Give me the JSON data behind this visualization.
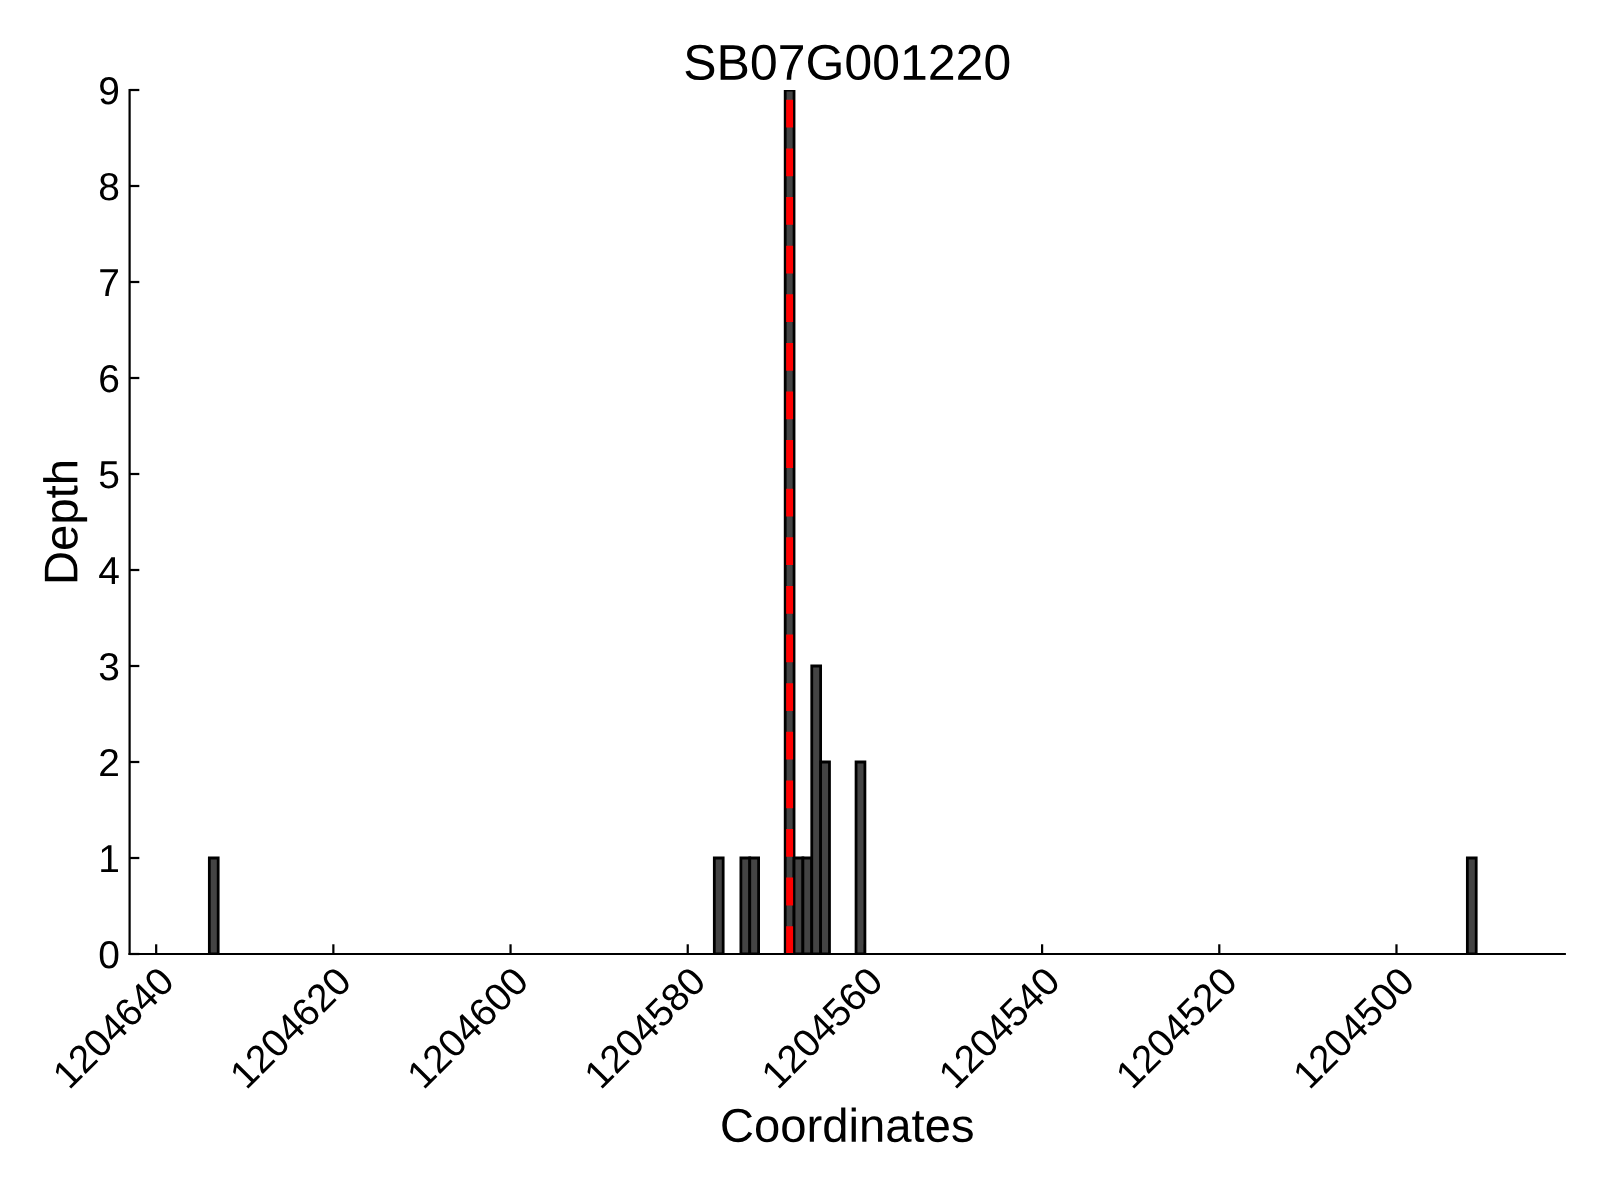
{
  "chart_data": {
    "type": "bar",
    "title": "SB07G001220",
    "xlabel": "Coordinates",
    "ylabel": "Depth",
    "x": [
      1204633,
      1204576,
      1204573,
      1204572,
      1204568,
      1204567,
      1204566,
      1204565,
      1204564,
      1204560,
      1204491
    ],
    "values": [
      1,
      1,
      1,
      1,
      9,
      1,
      1,
      3,
      2,
      2,
      1
    ],
    "color": "#444444",
    "xlim": [
      1204643,
      1204481
    ],
    "xticks": [
      1204640,
      1204620,
      1204600,
      1204580,
      1204560,
      1204540,
      1204520,
      1204500
    ],
    "ylim": [
      0,
      9
    ],
    "yticks": [
      0,
      1,
      2,
      3,
      4,
      5,
      6,
      7,
      8,
      9
    ],
    "ref_lines": [
      {
        "axis": "x",
        "value": 1204568.5,
        "color": "#ff0000",
        "line_style": "dashed"
      }
    ],
    "grid": false,
    "legend": false
  }
}
